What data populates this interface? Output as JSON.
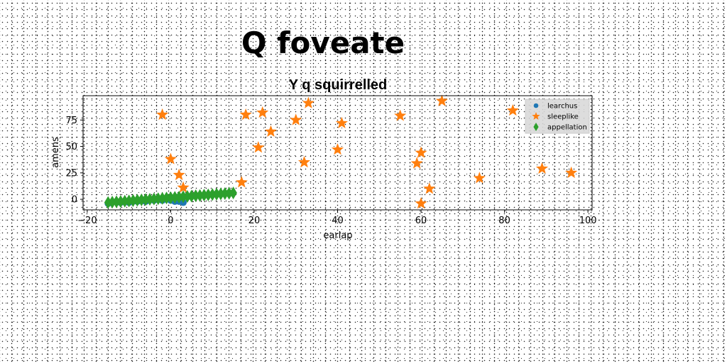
{
  "figure": {
    "suptitle": "Q foveate"
  },
  "chart_data": {
    "type": "scatter",
    "title": "Y q squirrelled",
    "xlabel": "earlap",
    "ylabel": "amens",
    "xlim": [
      -21,
      101
    ],
    "ylim": [
      -10,
      98
    ],
    "xticks": [
      -20,
      0,
      20,
      40,
      60,
      80,
      100
    ],
    "yticks": [
      0,
      25,
      50,
      75
    ],
    "grid": false,
    "legend_position": "top-right",
    "colors": {
      "learchus": "#1f77b4",
      "sleeplike": "#ff7f0e",
      "appellation": "#2ca02c"
    },
    "series": [
      {
        "name": "learchus",
        "marker": "circle",
        "x": [
          -15,
          -12,
          -10,
          -8,
          -6,
          -4,
          -2,
          0,
          1,
          2,
          3
        ],
        "y": [
          -4,
          -3,
          -3,
          -2,
          -2,
          -1,
          -1,
          -1,
          -2,
          -2,
          -3
        ]
      },
      {
        "name": "sleeplike",
        "marker": "star",
        "x": [
          -2,
          0,
          2,
          3,
          17,
          18,
          21,
          22,
          24,
          30,
          32,
          33,
          40,
          41,
          55,
          59,
          60,
          60,
          62,
          65,
          74,
          82,
          89,
          96
        ],
        "y": [
          80,
          38,
          23,
          11,
          16,
          80,
          49,
          82,
          64,
          75,
          35,
          91,
          47,
          72,
          79,
          34,
          44,
          -4,
          10,
          93,
          20,
          84,
          29,
          25
        ]
      },
      {
        "name": "appellation",
        "marker": "diamond",
        "x": [
          -15,
          -14,
          -13,
          -12,
          -11,
          -10,
          -9,
          -8,
          -7,
          -6,
          -5,
          -4,
          -3,
          -2,
          -1,
          0,
          1,
          2,
          3,
          4,
          5,
          6,
          7,
          8,
          9,
          10,
          11,
          12,
          13,
          14,
          15
        ],
        "y": [
          -3,
          -2.7,
          -2.4,
          -2.1,
          -1.8,
          -1.5,
          -1.2,
          -0.9,
          -0.6,
          -0.3,
          0,
          0.3,
          0.6,
          0.9,
          1.2,
          1.5,
          1.8,
          2.1,
          2.4,
          2.7,
          3,
          3.3,
          3.6,
          3.9,
          4.2,
          4.5,
          4.8,
          5.1,
          5.4,
          5.7,
          6
        ]
      }
    ]
  }
}
